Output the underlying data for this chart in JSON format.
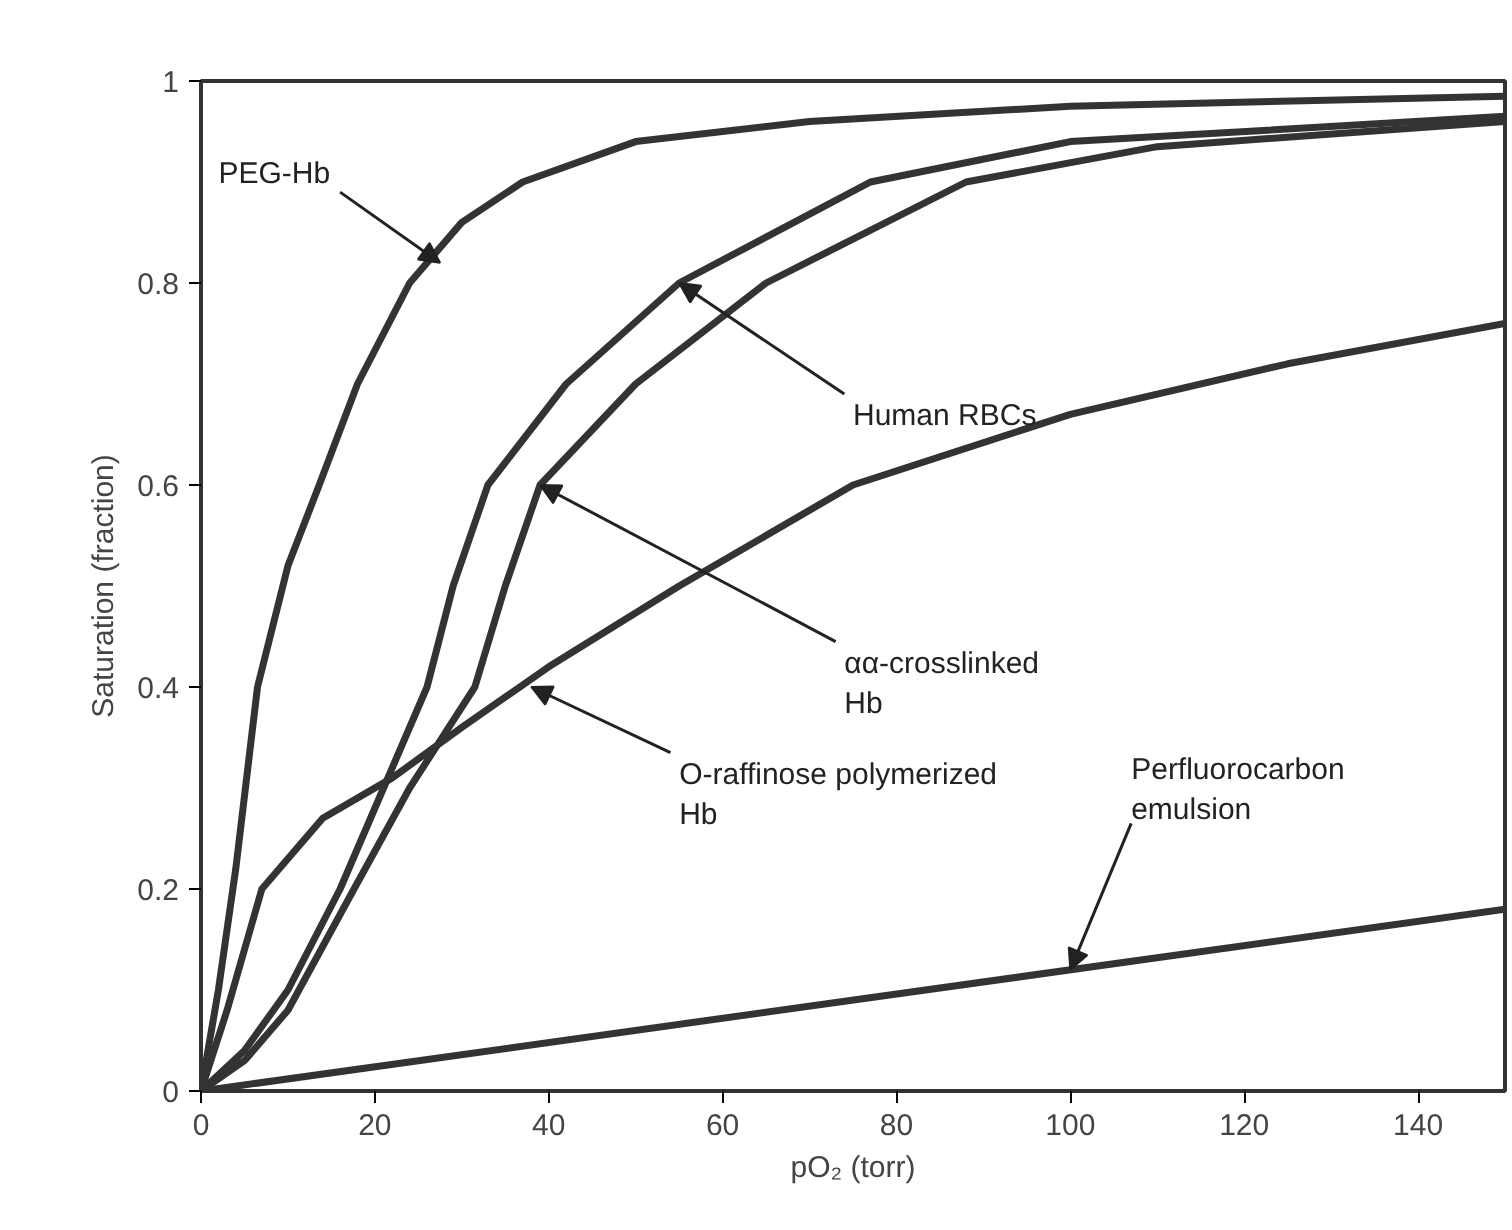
{
  "chart_data": {
    "type": "line",
    "xlabel": "pO₂ (torr)",
    "ylabel": "Saturation (fraction)",
    "xlim": [
      0,
      150
    ],
    "ylim": [
      0,
      1
    ],
    "xticks": [
      0,
      20,
      40,
      60,
      80,
      100,
      120,
      140
    ],
    "yticks": [
      0,
      0.2,
      0.4,
      0.6,
      0.8,
      1
    ],
    "grid": false,
    "marker": "none",
    "line_style": "solid",
    "series": [
      {
        "color": "#333333",
        "x": [
          0,
          2,
          4,
          6.5,
          10,
          13.6,
          18,
          24,
          30,
          37,
          50,
          70,
          100,
          150
        ],
        "values": [
          0,
          0.1,
          0.22,
          0.4,
          0.52,
          0.6,
          0.7,
          0.8,
          0.86,
          0.9,
          0.94,
          0.96,
          0.975,
          0.985
        ]
      },
      {
        "color": "#333333",
        "x": [
          0,
          5,
          10,
          16,
          21,
          26,
          29,
          33,
          42,
          55,
          77,
          100,
          150
        ],
        "values": [
          0,
          0.04,
          0.1,
          0.2,
          0.3,
          0.4,
          0.5,
          0.6,
          0.7,
          0.8,
          0.9,
          0.94,
          0.965
        ]
      },
      {
        "color": "#333333",
        "x": [
          0,
          5,
          10,
          17.6,
          24,
          31.5,
          35,
          39,
          50,
          65,
          88,
          110,
          150
        ],
        "values": [
          0,
          0.03,
          0.08,
          0.2,
          0.3,
          0.4,
          0.5,
          0.6,
          0.7,
          0.8,
          0.9,
          0.935,
          0.96
        ]
      },
      {
        "color": "#333333",
        "x": [
          0,
          3,
          7,
          14,
          22,
          30,
          40,
          55,
          75,
          100,
          125,
          150
        ],
        "values": [
          0,
          0.08,
          0.2,
          0.27,
          0.31,
          0.36,
          0.42,
          0.5,
          0.6,
          0.67,
          0.72,
          0.76
        ]
      },
      {
        "color": "#333333",
        "x": [
          0,
          150
        ],
        "values": [
          0,
          0.18
        ]
      }
    ],
    "annotations": [
      {
        "text": "PEG-Hb",
        "x": 27.5,
        "y": 0.82
      },
      {
        "text": "Human RBCs",
        "x": 55,
        "y": 0.8
      },
      {
        "text": "αα-crosslinked\nHb",
        "x": 39,
        "y": 0.6
      },
      {
        "text": "O-raffinose polymerized\nHb",
        "x": 38,
        "y": 0.4
      },
      {
        "text": "Perfluorocarbon\nemulsion",
        "x": 100,
        "y": 0.12
      }
    ]
  }
}
